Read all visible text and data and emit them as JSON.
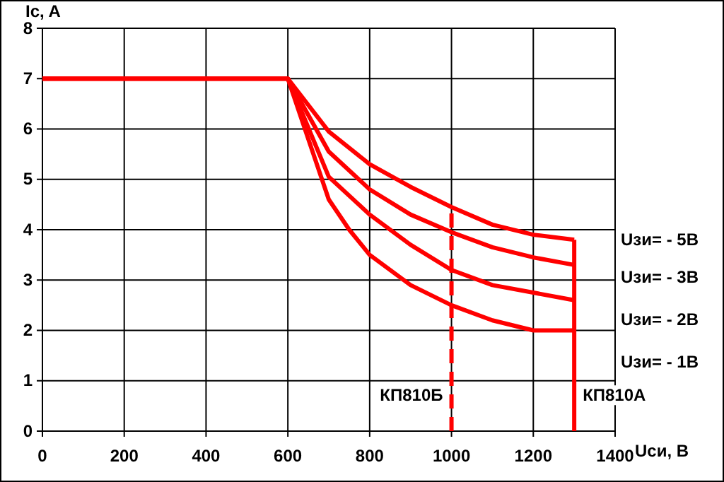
{
  "chart_data": {
    "type": "line",
    "xlabel": "Uси, В",
    "ylabel": "Ic, A",
    "xlim": [
      0,
      1400
    ],
    "ylim": [
      0,
      8
    ],
    "xticks": [
      0,
      200,
      400,
      600,
      800,
      1000,
      1200,
      1400
    ],
    "yticks": [
      0,
      1,
      2,
      3,
      4,
      5,
      6,
      7,
      8
    ],
    "grid": true,
    "marker": "none",
    "series": [
      {
        "name": "Uзи= - 5В",
        "color": "#ff0000",
        "x": [
          0,
          600,
          700,
          800,
          900,
          1000,
          1100,
          1200,
          1300
        ],
        "values": [
          7,
          7,
          5.95,
          5.3,
          4.85,
          4.45,
          4.1,
          3.9,
          3.8
        ]
      },
      {
        "name": "Uзи= - 3В",
        "color": "#ff0000",
        "x": [
          0,
          600,
          700,
          800,
          900,
          1000,
          1100,
          1200,
          1300
        ],
        "values": [
          7,
          7,
          5.55,
          4.8,
          4.3,
          3.95,
          3.65,
          3.45,
          3.3
        ]
      },
      {
        "name": "Uзи= - 2В",
        "color": "#ff0000",
        "x": [
          0,
          600,
          700,
          800,
          900,
          1000,
          1100,
          1200,
          1300
        ],
        "values": [
          7,
          7,
          5.05,
          4.3,
          3.7,
          3.2,
          2.9,
          2.75,
          2.6
        ]
      },
      {
        "name": "Uзи= - 1В",
        "color": "#ff0000",
        "x": [
          0,
          600,
          700,
          750,
          800,
          900,
          1000,
          1100,
          1200,
          1300
        ],
        "values": [
          7,
          7,
          4.6,
          4.0,
          3.5,
          2.9,
          2.5,
          2.2,
          2.0,
          2.0
        ]
      },
      {
        "color": "#ff0000",
        "x": [
          1000,
          1000
        ],
        "values": [
          0,
          4.45
        ],
        "line_style": "dashed"
      },
      {
        "color": "#ff0000",
        "x": [
          1300,
          1300
        ],
        "values": [
          0,
          3.8
        ]
      }
    ],
    "annotations": [
      {
        "text": "КП810Б",
        "x": 1000,
        "y": 0.6
      },
      {
        "text": "КП810А",
        "x": 1300,
        "y": 0.6
      }
    ]
  }
}
